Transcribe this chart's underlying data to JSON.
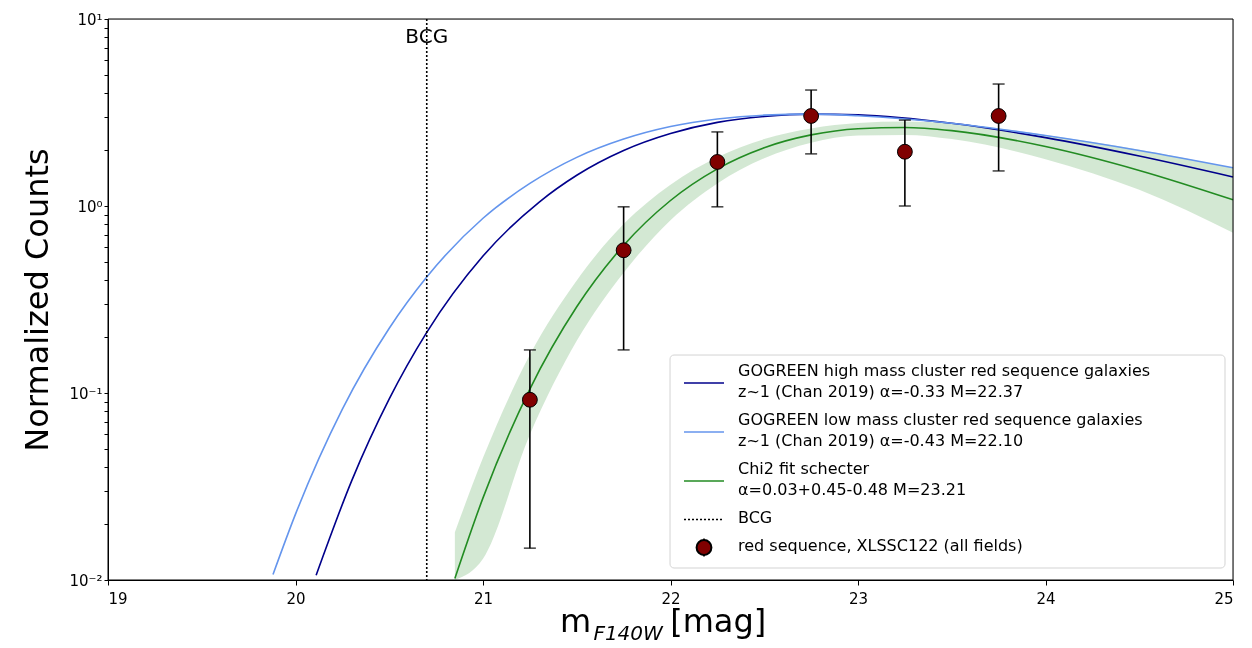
{
  "chart_data": {
    "type": "line",
    "xlabel": "m$_{F140W}$ [mag]",
    "ylabel": "Normalized Counts",
    "log": "y",
    "grid": false,
    "legend": "bottom right",
    "xlim": [
      19,
      25
    ],
    "xticks": [
      19,
      20,
      21,
      22,
      23,
      24,
      25
    ],
    "ylim": [
      0.01,
      10
    ],
    "yticks": [
      {
        "value": 0.01,
        "label": "10⁻²"
      },
      {
        "value": 0.02,
        "label": null
      },
      {
        "value": 0.03,
        "label": null
      },
      {
        "value": 0.04,
        "label": null
      },
      {
        "value": 0.05,
        "label": null
      },
      {
        "value": 0.06,
        "label": null
      },
      {
        "value": 0.07,
        "label": null
      },
      {
        "value": 0.08,
        "label": null
      },
      {
        "value": 0.09,
        "label": null
      },
      {
        "value": 0.1,
        "label": "10⁻¹"
      },
      {
        "value": 0.2,
        "label": null
      },
      {
        "value": 0.3,
        "label": null
      },
      {
        "value": 0.4,
        "label": null
      },
      {
        "value": 0.5,
        "label": null
      },
      {
        "value": 0.6,
        "label": null
      },
      {
        "value": 0.7,
        "label": null
      },
      {
        "value": 0.8,
        "label": null
      },
      {
        "value": 0.9,
        "label": null
      },
      {
        "value": 1,
        "label": "10⁰"
      },
      {
        "value": 2,
        "label": null
      },
      {
        "value": 3,
        "label": null
      },
      {
        "value": 4,
        "label": null
      },
      {
        "value": 5,
        "label": null
      },
      {
        "value": 6,
        "label": null
      },
      {
        "value": 7,
        "label": null
      },
      {
        "value": 8,
        "label": null
      },
      {
        "value": 9,
        "label": null
      },
      {
        "value": 10,
        "label": "10¹"
      }
    ],
    "series": [
      {
        "name": "GOGREEN high mass cluster red sequence galaxies\n z~1 (Chan 2019) α=-0.33 M=22.37",
        "color": "#00008b",
        "x": [
          20.11,
          20.3,
          20.5,
          20.7,
          21.0,
          21.3,
          21.5,
          21.75,
          22.0,
          22.25,
          22.5,
          22.75,
          23.0,
          23.5,
          24.0,
          24.5,
          25.0
        ],
        "values": [
          0.0106,
          0.034,
          0.093,
          0.211,
          0.54,
          1.05,
          1.46,
          1.98,
          2.44,
          2.8,
          3.01,
          3.1,
          3.07,
          2.77,
          2.32,
          1.85,
          1.43
        ]
      },
      {
        "name": "GOGREEN low mass cluster red sequence galaxies\n z~1 (Chan 2019) α=-0.43 M=22.10",
        "color": "#6495ed",
        "x": [
          19.88,
          20.0,
          20.25,
          20.5,
          20.7,
          21.0,
          21.25,
          21.5,
          21.75,
          22.0,
          22.25,
          22.5,
          22.75,
          23.0,
          23.5,
          24.0,
          24.5,
          25.0
        ],
        "values": [
          0.0107,
          0.0225,
          0.082,
          0.222,
          0.417,
          0.86,
          1.32,
          1.82,
          2.28,
          2.66,
          2.92,
          3.06,
          3.1,
          3.04,
          2.77,
          2.38,
          1.98,
          1.6
        ]
      },
      {
        "name": "Chi2 fit schecter\nα=0.03+0.45-0.48 M=23.21",
        "color": "#228b22",
        "x": [
          20.85,
          21.0,
          21.25,
          21.5,
          21.75,
          22.0,
          22.25,
          22.5,
          22.75,
          23.0,
          23.25,
          23.5,
          24.0,
          24.5,
          25.0
        ],
        "values": [
          0.0102,
          0.0275,
          0.105,
          0.289,
          0.616,
          1.07,
          1.58,
          2.05,
          2.4,
          2.59,
          2.63,
          2.53,
          2.08,
          1.55,
          1.08
        ],
        "upper": [
          0.018,
          0.045,
          0.16,
          0.4,
          0.8,
          1.3,
          1.82,
          2.28,
          2.6,
          2.78,
          2.83,
          2.76,
          2.4,
          2.0,
          1.6
        ],
        "lower": [
          0.01,
          0.013,
          0.06,
          0.19,
          0.44,
          0.84,
          1.32,
          1.8,
          2.18,
          2.38,
          2.4,
          2.28,
          1.78,
          1.22,
          0.72
        ]
      },
      {
        "name": "red sequence, XLSSC122 (all fields)",
        "type": "scatter",
        "marker": "circle",
        "color": "#800000",
        "x": [
          21.25,
          21.75,
          22.25,
          22.75,
          23.25,
          23.75
        ],
        "values": [
          0.092,
          0.58,
          1.72,
          3.03,
          1.95,
          3.03
        ],
        "errors": [
          [
            0.0148,
            0.17
          ],
          [
            0.17,
            0.99
          ],
          [
            0.99,
            2.49
          ],
          [
            1.9,
            4.17
          ],
          [
            1.0,
            2.88
          ],
          [
            1.54,
            4.49
          ]
        ]
      }
    ],
    "ref_lines": [
      {
        "axis": "x",
        "value": 20.7,
        "label": "BCG",
        "color": "#000000",
        "line_style": "dotted"
      }
    ]
  }
}
